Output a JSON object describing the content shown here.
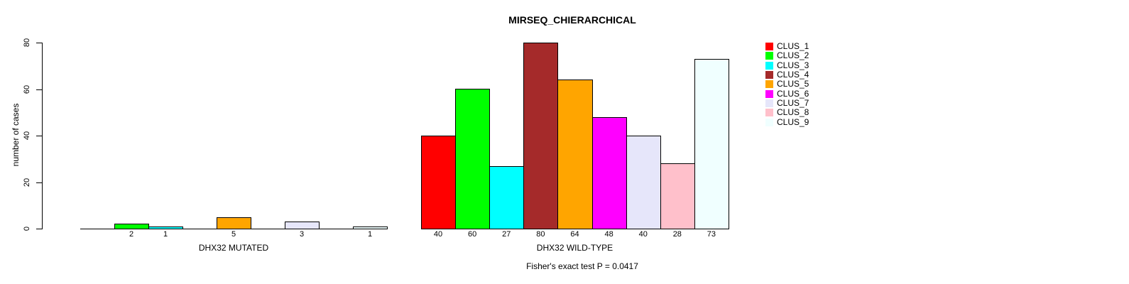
{
  "chart_data": {
    "type": "bar",
    "title": "MIRSEQ_CHIERARCHICAL",
    "ylabel": "number of cases",
    "xlabel": "",
    "ylim": [
      0,
      80
    ],
    "yticks": [
      0,
      20,
      40,
      60,
      80
    ],
    "grid": false,
    "bar_border_color": "#000000",
    "legend_position": "right-outside",
    "legend": [
      {
        "label": "CLUS_1",
        "color": "#FF0000"
      },
      {
        "label": "CLUS_2",
        "color": "#00FF00"
      },
      {
        "label": "CLUS_3",
        "color": "#00FFFF"
      },
      {
        "label": "CLUS_4",
        "color": "#A52A2A"
      },
      {
        "label": "CLUS_5",
        "color": "#FFA500"
      },
      {
        "label": "CLUS_6",
        "color": "#FF00FF"
      },
      {
        "label": "CLUS_7",
        "color": "#E6E6FA"
      },
      {
        "label": "CLUS_8",
        "color": "#FFC0CB"
      },
      {
        "label": "CLUS_9",
        "color": "#F0FFFF"
      }
    ],
    "groups": [
      {
        "label": "DHX32 MUTATED",
        "values": [
          0,
          2,
          1,
          0,
          5,
          0,
          3,
          0,
          1
        ]
      },
      {
        "label": "DHX32 WILD-TYPE",
        "values": [
          40,
          60,
          27,
          80,
          64,
          48,
          40,
          28,
          73
        ]
      }
    ],
    "show_zero_bar_labels": false,
    "annotation": "Fisher's exact test P = 0.0417"
  }
}
